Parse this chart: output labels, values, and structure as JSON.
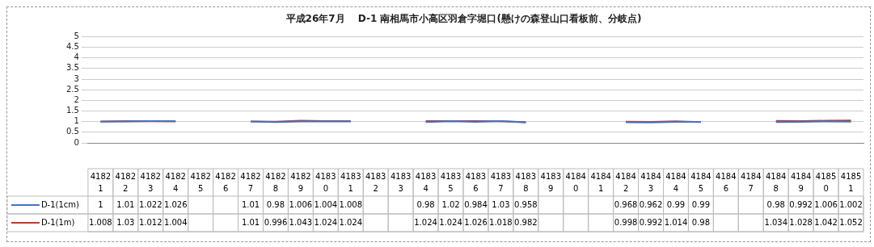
{
  "chart_data": {
    "type": "line",
    "title": "平成26年7月　 D-1 南相馬市小高区羽倉字堀口(懸けの森登山口看板前、分岐点)",
    "categories": [
      "41821",
      "41822",
      "41823",
      "41824",
      "41825",
      "41826",
      "41827",
      "41828",
      "41829",
      "41830",
      "41831",
      "41832",
      "41833",
      "41834",
      "41835",
      "41836",
      "41837",
      "41838",
      "41839",
      "41840",
      "41841",
      "41842",
      "41843",
      "41844",
      "41845",
      "41846",
      "41847",
      "41848",
      "41849",
      "41850",
      "41851"
    ],
    "series": [
      {
        "name": "D-1(1cm)",
        "color": "#4472c4",
        "values": [
          1,
          1.01,
          1.022,
          1.026,
          null,
          null,
          1.01,
          0.98,
          1.006,
          1.004,
          1.008,
          null,
          null,
          0.98,
          1.02,
          0.984,
          1.03,
          0.958,
          null,
          null,
          null,
          0.968,
          0.962,
          0.99,
          0.99,
          null,
          null,
          0.98,
          0.992,
          1.006,
          1.002
        ]
      },
      {
        "name": "D-1(1m)",
        "color": "#c0392b",
        "values": [
          1.008,
          1.03,
          1.012,
          1.004,
          null,
          null,
          1.01,
          0.996,
          1.043,
          1.024,
          1.024,
          null,
          null,
          1.024,
          1.024,
          1.026,
          1.018,
          0.982,
          null,
          null,
          null,
          0.998,
          0.992,
          1.014,
          0.98,
          null,
          null,
          1.034,
          1.028,
          1.042,
          1.052
        ]
      }
    ],
    "ylim": [
      0,
      5
    ],
    "yticks": [
      0,
      0.5,
      1,
      1.5,
      2,
      2.5,
      3,
      3.5,
      4,
      4.5,
      5
    ],
    "grid": "y",
    "legend": "bottom",
    "data_labels": true,
    "marker": "none"
  }
}
